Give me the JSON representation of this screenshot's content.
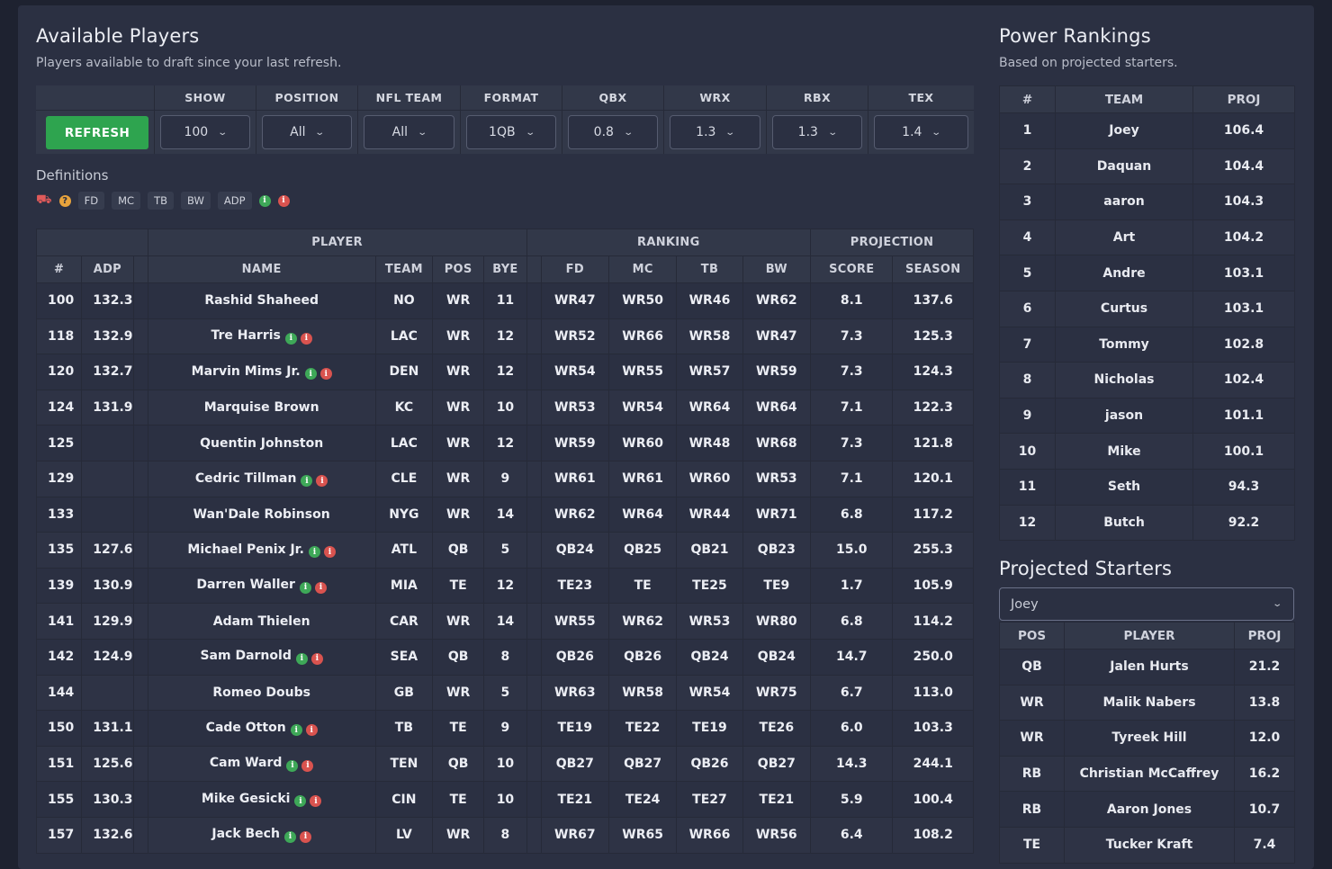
{
  "available": {
    "title": "Available Players",
    "subtitle": "Players available to draft since your last refresh.",
    "refresh_label": "REFRESH",
    "controls": [
      {
        "label": "SHOW",
        "value": "100"
      },
      {
        "label": "POSITION",
        "value": "All"
      },
      {
        "label": "NFL TEAM",
        "value": "All"
      },
      {
        "label": "FORMAT",
        "value": "1QB"
      },
      {
        "label": "QBX",
        "value": "0.8"
      },
      {
        "label": "WRX",
        "value": "1.3"
      },
      {
        "label": "RBX",
        "value": "1.3"
      },
      {
        "label": "TEX",
        "value": "1.4"
      }
    ],
    "definitions_title": "Definitions",
    "definition_chips": [
      "FD",
      "MC",
      "TB",
      "BW",
      "ADP"
    ],
    "definition_icons": [
      "truck-icon",
      "help-icon",
      "info-green-icon",
      "info-red-icon"
    ],
    "group_headers": {
      "player": "PLAYER",
      "ranking": "RANKING",
      "projection": "PROJECTION"
    },
    "columns": [
      "#",
      "ADP",
      "NAME",
      "TEAM",
      "POS",
      "BYE",
      "FD",
      "MC",
      "TB",
      "BW",
      "SCORE",
      "SEASON"
    ],
    "rows": [
      {
        "num": "100",
        "adp": "132.3",
        "name": "Rashid Shaheed",
        "icons": false,
        "team": "NO",
        "pos": "WR",
        "bye": "11",
        "fd": "WR47",
        "mc": "WR50",
        "tb": "WR46",
        "bw": "WR62",
        "score": "8.1",
        "season": "137.6"
      },
      {
        "num": "118",
        "adp": "132.9",
        "name": "Tre Harris",
        "icons": true,
        "team": "LAC",
        "pos": "WR",
        "bye": "12",
        "fd": "WR52",
        "mc": "WR66",
        "tb": "WR58",
        "bw": "WR47",
        "score": "7.3",
        "season": "125.3"
      },
      {
        "num": "120",
        "adp": "132.7",
        "name": "Marvin Mims Jr.",
        "icons": true,
        "team": "DEN",
        "pos": "WR",
        "bye": "12",
        "fd": "WR54",
        "mc": "WR55",
        "tb": "WR57",
        "bw": "WR59",
        "score": "7.3",
        "season": "124.3"
      },
      {
        "num": "124",
        "adp": "131.9",
        "name": "Marquise Brown",
        "icons": false,
        "team": "KC",
        "pos": "WR",
        "bye": "10",
        "fd": "WR53",
        "mc": "WR54",
        "tb": "WR64",
        "bw": "WR64",
        "score": "7.1",
        "season": "122.3"
      },
      {
        "num": "125",
        "adp": "",
        "name": "Quentin Johnston",
        "icons": false,
        "team": "LAC",
        "pos": "WR",
        "bye": "12",
        "fd": "WR59",
        "mc": "WR60",
        "tb": "WR48",
        "bw": "WR68",
        "score": "7.3",
        "season": "121.8"
      },
      {
        "num": "129",
        "adp": "",
        "name": "Cedric Tillman",
        "icons": true,
        "team": "CLE",
        "pos": "WR",
        "bye": "9",
        "fd": "WR61",
        "mc": "WR61",
        "tb": "WR60",
        "bw": "WR53",
        "score": "7.1",
        "season": "120.1"
      },
      {
        "num": "133",
        "adp": "",
        "name": "Wan'Dale Robinson",
        "icons": false,
        "team": "NYG",
        "pos": "WR",
        "bye": "14",
        "fd": "WR62",
        "mc": "WR64",
        "tb": "WR44",
        "bw": "WR71",
        "score": "6.8",
        "season": "117.2"
      },
      {
        "num": "135",
        "adp": "127.6",
        "name": "Michael Penix Jr.",
        "icons": true,
        "team": "ATL",
        "pos": "QB",
        "bye": "5",
        "fd": "QB24",
        "mc": "QB25",
        "tb": "QB21",
        "bw": "QB23",
        "score": "15.0",
        "season": "255.3"
      },
      {
        "num": "139",
        "adp": "130.9",
        "name": "Darren Waller",
        "icons": true,
        "team": "MIA",
        "pos": "TE",
        "bye": "12",
        "fd": "TE23",
        "mc": "TE",
        "tb": "TE25",
        "bw": "TE9",
        "score": "1.7",
        "season": "105.9"
      },
      {
        "num": "141",
        "adp": "129.9",
        "name": "Adam Thielen",
        "icons": false,
        "team": "CAR",
        "pos": "WR",
        "bye": "14",
        "fd": "WR55",
        "mc": "WR62",
        "tb": "WR53",
        "bw": "WR80",
        "score": "6.8",
        "season": "114.2"
      },
      {
        "num": "142",
        "adp": "124.9",
        "name": "Sam Darnold",
        "icons": true,
        "team": "SEA",
        "pos": "QB",
        "bye": "8",
        "fd": "QB26",
        "mc": "QB26",
        "tb": "QB24",
        "bw": "QB24",
        "score": "14.7",
        "season": "250.0"
      },
      {
        "num": "144",
        "adp": "",
        "name": "Romeo Doubs",
        "icons": false,
        "team": "GB",
        "pos": "WR",
        "bye": "5",
        "fd": "WR63",
        "mc": "WR58",
        "tb": "WR54",
        "bw": "WR75",
        "score": "6.7",
        "season": "113.0"
      },
      {
        "num": "150",
        "adp": "131.1",
        "name": "Cade Otton",
        "icons": true,
        "team": "TB",
        "pos": "TE",
        "bye": "9",
        "fd": "TE19",
        "mc": "TE22",
        "tb": "TE19",
        "bw": "TE26",
        "score": "6.0",
        "season": "103.3"
      },
      {
        "num": "151",
        "adp": "125.6",
        "name": "Cam Ward",
        "icons": true,
        "team": "TEN",
        "pos": "QB",
        "bye": "10",
        "fd": "QB27",
        "mc": "QB27",
        "tb": "QB26",
        "bw": "QB27",
        "score": "14.3",
        "season": "244.1"
      },
      {
        "num": "155",
        "adp": "130.3",
        "name": "Mike Gesicki",
        "icons": true,
        "team": "CIN",
        "pos": "TE",
        "bye": "10",
        "fd": "TE21",
        "mc": "TE24",
        "tb": "TE27",
        "bw": "TE21",
        "score": "5.9",
        "season": "100.4"
      },
      {
        "num": "157",
        "adp": "132.6",
        "name": "Jack Bech",
        "icons": true,
        "team": "LV",
        "pos": "WR",
        "bye": "8",
        "fd": "WR67",
        "mc": "WR65",
        "tb": "WR66",
        "bw": "WR56",
        "score": "6.4",
        "season": "108.2"
      }
    ]
  },
  "power": {
    "title": "Power Rankings",
    "subtitle": "Based on projected starters.",
    "columns": [
      "#",
      "TEAM",
      "PROJ"
    ],
    "rows": [
      {
        "rank": "1",
        "team": "Joey",
        "proj": "106.4"
      },
      {
        "rank": "2",
        "team": "Daquan",
        "proj": "104.4"
      },
      {
        "rank": "3",
        "team": "aaron",
        "proj": "104.3"
      },
      {
        "rank": "4",
        "team": "Art",
        "proj": "104.2"
      },
      {
        "rank": "5",
        "team": "Andre",
        "proj": "103.1"
      },
      {
        "rank": "6",
        "team": "Curtus",
        "proj": "103.1"
      },
      {
        "rank": "7",
        "team": "Tommy",
        "proj": "102.8"
      },
      {
        "rank": "8",
        "team": "Nicholas",
        "proj": "102.4"
      },
      {
        "rank": "9",
        "team": "jason",
        "proj": "101.1"
      },
      {
        "rank": "10",
        "team": "Mike",
        "proj": "100.1"
      },
      {
        "rank": "11",
        "team": "Seth",
        "proj": "94.3"
      },
      {
        "rank": "12",
        "team": "Butch",
        "proj": "92.2"
      }
    ]
  },
  "starters": {
    "title": "Projected Starters",
    "selected_team": "Joey",
    "columns": [
      "POS",
      "PLAYER",
      "PROJ"
    ],
    "rows": [
      {
        "pos": "QB",
        "player": "Jalen Hurts",
        "proj": "21.2"
      },
      {
        "pos": "WR",
        "player": "Malik Nabers",
        "proj": "13.8"
      },
      {
        "pos": "WR",
        "player": "Tyreek Hill",
        "proj": "12.0"
      },
      {
        "pos": "RB",
        "player": "Christian McCaffrey",
        "proj": "16.2"
      },
      {
        "pos": "RB",
        "player": "Aaron Jones",
        "proj": "10.7"
      },
      {
        "pos": "TE",
        "player": "Tucker Kraft",
        "proj": "7.4"
      }
    ]
  }
}
